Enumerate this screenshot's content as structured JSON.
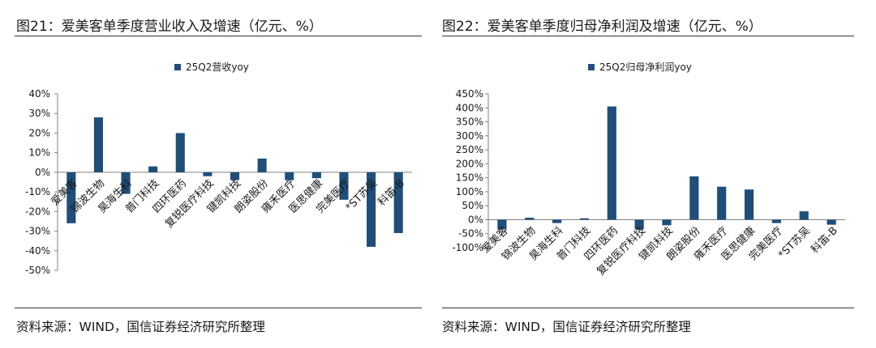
{
  "colors": {
    "bar": "#1f4e79",
    "axis": "#808080",
    "text": "#1a1a1a"
  },
  "left": {
    "title": "图21：爱美客单季度营业收入及增速（亿元、%）",
    "source": "资料来源：WIND，国信证券经济研究所整理"
  },
  "right": {
    "title": "图22：爱美客单季度归母净利润及增速（亿元、%）",
    "source": "资料来源：WIND，国信证券经济研究所整理"
  },
  "chart_data": [
    {
      "type": "bar",
      "series": [
        {
          "name": "25Q2营收yoy",
          "values": [
            -26,
            28,
            -11,
            3,
            20,
            -2,
            -4,
            7,
            -4,
            -3,
            -14,
            -38,
            -31
          ]
        }
      ],
      "categories": [
        "爱美客",
        "锦波生物",
        "昊海生科",
        "普门科技",
        "四环医药",
        "复锐医疗科技",
        "键凯科技",
        "朗姿股份",
        "雍禾医疗",
        "医思健康",
        "完美医疗",
        "*ST苏吴",
        "科笛-B"
      ],
      "ylim": [
        -50,
        40
      ],
      "yticks": [
        40,
        30,
        20,
        10,
        0,
        -10,
        -20,
        -30,
        -40,
        -50
      ],
      "ytick_labels": [
        "40%",
        "30%",
        "20%",
        "10%",
        "0%",
        "-10%",
        "-20%",
        "-30%",
        "-40%",
        "-50%"
      ],
      "legend_position": "top-center",
      "grid": false
    },
    {
      "type": "bar",
      "series": [
        {
          "name": "25Q2归母净利润yoy",
          "values": [
            -35,
            7,
            -12,
            5,
            405,
            -35,
            -20,
            155,
            118,
            108,
            -12,
            30,
            -18
          ]
        }
      ],
      "categories": [
        "爱美客",
        "锦波生物",
        "昊海生科",
        "普门科技",
        "四环医药",
        "复锐医疗科技",
        "键凯科技",
        "朗姿股份",
        "雍禾医疗",
        "医思健康",
        "完美医疗",
        "*ST苏吴",
        "科笛-B"
      ],
      "ylim": [
        -100,
        450
      ],
      "yticks": [
        450,
        400,
        350,
        300,
        250,
        200,
        150,
        100,
        50,
        0,
        -50,
        -100
      ],
      "ytick_labels": [
        "450%",
        "400%",
        "350%",
        "300%",
        "250%",
        "200%",
        "150%",
        "100%",
        "50%",
        "0%",
        "-50%",
        "-100%"
      ],
      "legend_position": "top-center",
      "grid": false
    }
  ]
}
